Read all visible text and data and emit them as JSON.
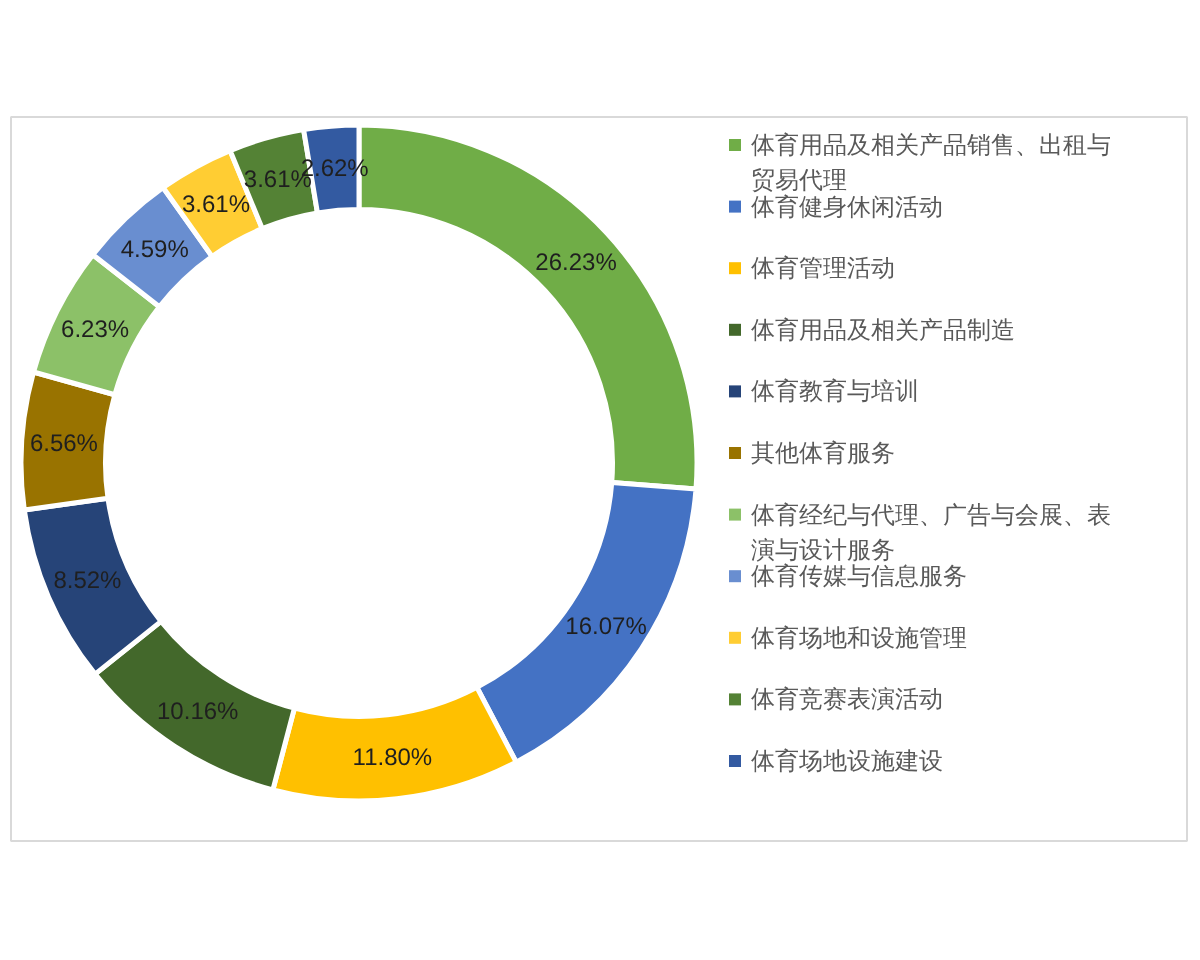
{
  "chart_data": {
    "type": "donut",
    "categories": [
      "体育用品及相关产品销售、出租与贸易代理",
      "体育健身休闲活动",
      "体育管理活动",
      "体育用品及相关产品制造",
      "体育教育与培训",
      "其他体育服务",
      "体育经纪与代理、广告与会展、表演与设计服务",
      "体育传媒与信息服务",
      "体育场地和设施管理",
      "体育竞赛表演活动",
      "体育场地设施建设"
    ],
    "values": [
      26.23,
      16.07,
      11.8,
      10.16,
      8.52,
      6.56,
      6.23,
      4.59,
      3.61,
      3.61,
      2.62
    ],
    "value_labels": [
      "26.23%",
      "16.07%",
      "11.80%",
      "10.16%",
      "8.52%",
      "6.56%",
      "6.23%",
      "4.59%",
      "3.61%",
      "3.61%",
      "2.62%"
    ],
    "colors": [
      "#70ad47",
      "#4472c4",
      "#ffc000",
      "#43682b",
      "#264478",
      "#997300",
      "#8cc168",
      "#698ed0",
      "#ffcd33",
      "#548235",
      "#335aa1"
    ],
    "legend": "right"
  }
}
